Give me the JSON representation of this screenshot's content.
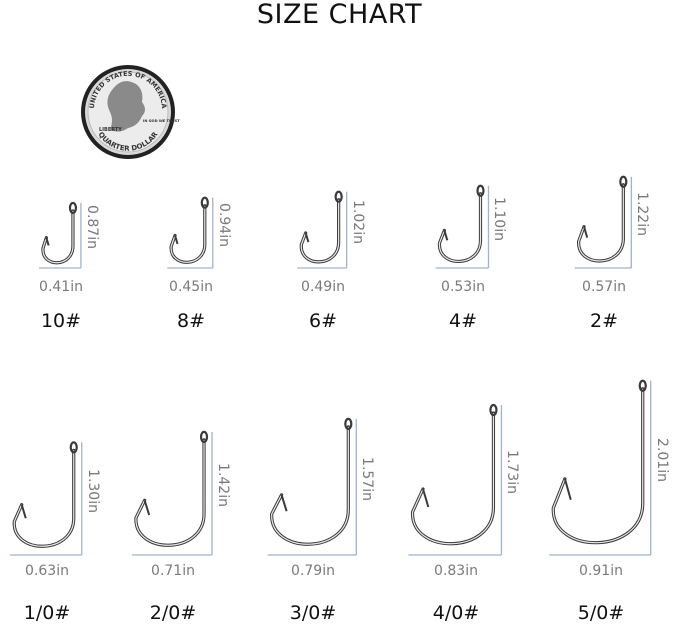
{
  "title": "SIZE CHART",
  "coin": {
    "lettering": [
      "UNITED STATES OF AMERICA",
      "LIBERTY",
      "IN GOD WE TRUST",
      "QUARTER DOLLAR"
    ]
  },
  "colors": {
    "measure_line": "#9fb3d1",
    "measure_text": "#7a7a7a",
    "hook": "#3a3a3a"
  },
  "hooks": [
    {
      "size": "10#",
      "width": "0.41in",
      "length": "0.87in",
      "w": 0.41,
      "l": 0.87
    },
    {
      "size": "8#",
      "width": "0.45in",
      "length": "0.94in",
      "w": 0.45,
      "l": 0.94
    },
    {
      "size": "6#",
      "width": "0.49in",
      "length": "1.02in",
      "w": 0.49,
      "l": 1.02
    },
    {
      "size": "4#",
      "width": "0.53in",
      "length": "1.10in",
      "w": 0.53,
      "l": 1.1
    },
    {
      "size": "2#",
      "width": "0.57in",
      "length": "1.22in",
      "w": 0.57,
      "l": 1.22
    },
    {
      "size": "1/0#",
      "width": "0.63in",
      "length": "1.30in",
      "w": 0.63,
      "l": 1.3
    },
    {
      "size": "2/0#",
      "width": "0.71in",
      "length": "1.42in",
      "w": 0.71,
      "l": 1.42
    },
    {
      "size": "3/0#",
      "width": "0.79in",
      "length": "1.57in",
      "w": 0.79,
      "l": 1.57
    },
    {
      "size": "4/0#",
      "width": "0.83in",
      "length": "1.73in",
      "w": 0.83,
      "l": 1.73
    },
    {
      "size": "5/0#",
      "width": "0.91in",
      "length": "2.01in",
      "w": 0.91,
      "l": 2.01
    }
  ]
}
